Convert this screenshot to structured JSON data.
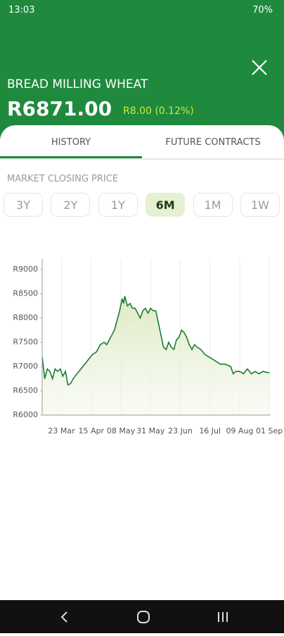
{
  "status_bar": {
    "time": "13:03",
    "battery": "70%"
  },
  "header": {
    "title": "BREAD MILLING WHEAT",
    "price": "R6871.00",
    "change": "R8.00 (0.12%)"
  },
  "tabs": [
    "HISTORY",
    "FUTURE CONTRACTS"
  ],
  "section_label": "MARKET CLOSING PRICE",
  "ranges": [
    "3Y",
    "2Y",
    "1Y",
    "6M",
    "1M",
    "1W"
  ],
  "selected_range": 3,
  "chart_data": {
    "type": "line",
    "color": "#1e7a34",
    "grid": "x",
    "x": [
      0,
      2,
      4,
      6,
      8,
      10,
      12,
      14,
      16,
      18,
      20,
      22,
      24,
      27,
      30,
      33,
      36,
      39,
      42,
      45,
      48,
      50,
      53,
      56,
      58,
      60,
      62,
      63,
      64,
      66,
      68,
      70,
      72,
      74,
      76,
      78,
      80,
      82,
      84,
      86,
      88,
      90,
      92,
      94,
      96,
      98,
      100,
      102,
      104,
      106,
      108,
      110,
      112,
      114,
      116,
      118,
      120,
      123,
      126,
      129,
      132,
      135,
      138,
      142,
      146,
      148,
      150,
      153,
      156,
      159,
      162,
      165,
      168,
      171,
      174,
      176
    ],
    "values": [
      7200,
      6750,
      6950,
      6900,
      6750,
      6950,
      6900,
      6950,
      6800,
      6900,
      6620,
      6650,
      6750,
      6850,
      6950,
      7050,
      7150,
      7250,
      7300,
      7450,
      7500,
      7450,
      7600,
      7750,
      7950,
      8150,
      8400,
      8300,
      8450,
      8250,
      8300,
      8200,
      8200,
      8100,
      8000,
      8150,
      8200,
      8100,
      8200,
      8150,
      8150,
      7900,
      7650,
      7400,
      7350,
      7500,
      7400,
      7350,
      7550,
      7600,
      7750,
      7700,
      7600,
      7450,
      7350,
      7450,
      7400,
      7350,
      7250,
      7200,
      7150,
      7100,
      7050,
      7050,
      7000,
      6850,
      6900,
      6900,
      6850,
      6950,
      6850,
      6900,
      6850,
      6900,
      6880,
      6871
    ],
    "xlim": [
      0,
      177
    ],
    "ylim": [
      6000,
      9000
    ],
    "xticks": [
      {
        "value": 15,
        "label": "23 Mar"
      },
      {
        "value": 38,
        "label": "15 Apr"
      },
      {
        "value": 61,
        "label": "08 May"
      },
      {
        "value": 84,
        "label": "31 May"
      },
      {
        "value": 107,
        "label": "23 Jun"
      },
      {
        "value": 130,
        "label": "16 Jul"
      },
      {
        "value": 153,
        "label": "09 Aug"
      },
      {
        "value": 176,
        "label": "01 Sep"
      }
    ],
    "yticks": [
      {
        "value": 6000,
        "label": "R6000"
      },
      {
        "value": 6500,
        "label": "R6500"
      },
      {
        "value": 7000,
        "label": "R7000"
      },
      {
        "value": 7500,
        "label": "R7500"
      },
      {
        "value": 8000,
        "label": "R8000"
      },
      {
        "value": 8500,
        "label": "R8500"
      },
      {
        "value": 9000,
        "label": "R9000"
      }
    ]
  }
}
